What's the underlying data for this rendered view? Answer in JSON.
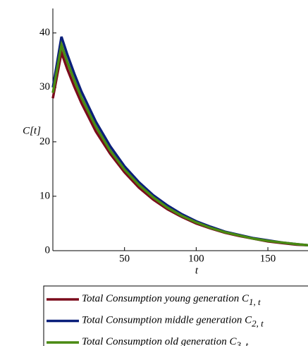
{
  "chart_data": {
    "type": "line",
    "x_label": "t",
    "y_label": "C[t]",
    "x": [
      0,
      3,
      6,
      10,
      15,
      20,
      30,
      40,
      50,
      60,
      70,
      80,
      90,
      100,
      110,
      120,
      130,
      140,
      150,
      160,
      170,
      178
    ],
    "series": [
      {
        "name": "Total Consumption young generation C1, t",
        "color": "#7b0b1c",
        "values": [
          28,
          32.2,
          36.4,
          33.4,
          30.1,
          27.1,
          21.9,
          17.8,
          14.4,
          11.6,
          9.4,
          7.6,
          6.2,
          5.0,
          4.1,
          3.3,
          2.7,
          2.2,
          1.7,
          1.4,
          1.1,
          1.0
        ]
      },
      {
        "name": "Total Consumption middle generation C2, t",
        "color": "#0a1f7a",
        "values": [
          30,
          34.6,
          39.3,
          36.1,
          32.5,
          29.2,
          23.7,
          19.2,
          15.5,
          12.6,
          10.2,
          8.3,
          6.7,
          5.4,
          4.4,
          3.5,
          2.9,
          2.3,
          1.9,
          1.5,
          1.2,
          1.0
        ]
      },
      {
        "name": "Total Consumption old generation C3, t",
        "color": "#4a8a12",
        "values": [
          29,
          33.4,
          37.8,
          34.7,
          31.3,
          28.1,
          22.8,
          18.4,
          14.9,
          12.1,
          9.8,
          7.9,
          6.4,
          5.2,
          4.2,
          3.4,
          2.8,
          2.2,
          1.8,
          1.5,
          1.2,
          1.0
        ]
      }
    ],
    "xlim": [
      0,
      178
    ],
    "ylim": [
      0,
      44.5
    ],
    "xticks": [
      50,
      100,
      150
    ],
    "yticks": [
      0,
      10,
      20,
      30,
      40
    ]
  }
}
